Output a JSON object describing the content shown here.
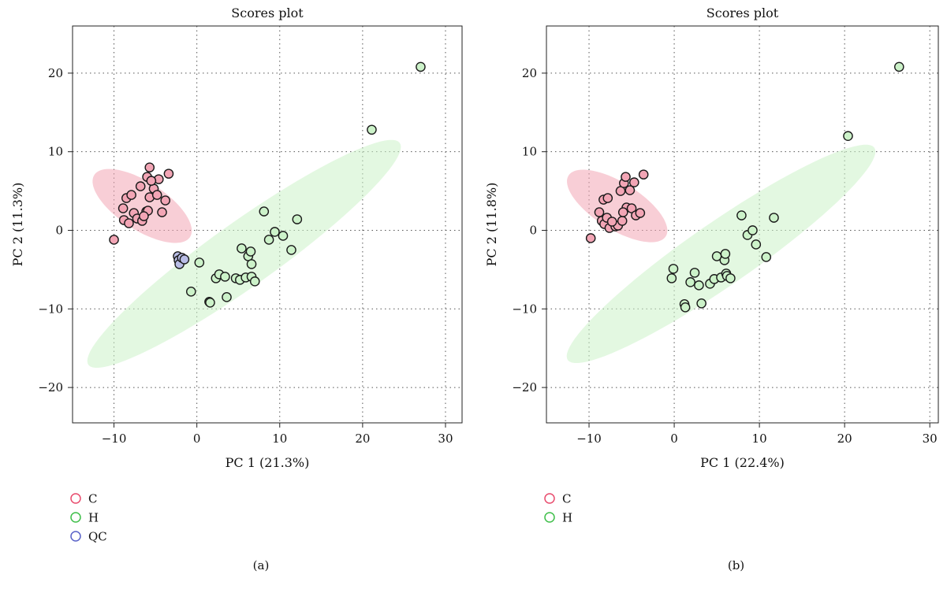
{
  "chart_data": [
    {
      "type": "scatter",
      "title": "Scores plot",
      "xlabel": "PC 1 (21.3%)",
      "ylabel": "PC 2 (11.3%)",
      "xlim": [
        -15,
        32
      ],
      "ylim": [
        -24.5,
        26
      ],
      "xticks": [
        -10,
        0,
        10,
        20,
        30
      ],
      "yticks": [
        -20,
        -10,
        0,
        10,
        20
      ],
      "xtick_labels": [
        "−10",
        "0",
        "10",
        "20",
        "30"
      ],
      "ytick_labels": [
        "−20",
        "−10",
        "0",
        "10",
        "20"
      ],
      "grid": true,
      "legend_position": "bottom-left",
      "caption": "(a)",
      "series": [
        {
          "name": "C",
          "marker_color": "#e84a6c",
          "fill_color": "#f2a5b5",
          "points": [
            [
              -10,
              -1.2
            ],
            [
              -8.8,
              1.3
            ],
            [
              -8.5,
              4.1
            ],
            [
              -8.9,
              2.8
            ],
            [
              -8.2,
              0.9
            ],
            [
              -7.6,
              2.2
            ],
            [
              -7.2,
              1.5
            ],
            [
              -6.6,
              1.2
            ],
            [
              -6.1,
              2.4
            ],
            [
              -6.0,
              6.8
            ],
            [
              -5.7,
              8.0
            ],
            [
              -5.7,
              4.2
            ],
            [
              -5.2,
              5.3
            ],
            [
              -4.8,
              4.5
            ],
            [
              -4.6,
              6.5
            ],
            [
              -4.2,
              2.3
            ],
            [
              -3.8,
              3.8
            ],
            [
              -3.4,
              7.2
            ],
            [
              -7.9,
              4.5
            ],
            [
              -6.8,
              5.6
            ],
            [
              -5.9,
              2.5
            ],
            [
              -5.5,
              6.3
            ],
            [
              -6.4,
              1.8
            ]
          ],
          "ellipse": {
            "center": [
              -6.6,
              3.1
            ],
            "semi_axes": [
              3.0,
              7.0
            ],
            "angle_deg": 55
          }
        },
        {
          "name": "H",
          "marker_color": "#3fbf4a",
          "fill_color": "#ccf2c9",
          "points": [
            [
              0.3,
              -4.1
            ],
            [
              -0.7,
              -7.8
            ],
            [
              1.5,
              -9.1
            ],
            [
              1.6,
              -9.2
            ],
            [
              2.3,
              -6.1
            ],
            [
              2.7,
              -5.6
            ],
            [
              3.4,
              -5.9
            ],
            [
              3.6,
              -8.5
            ],
            [
              4.7,
              -6.1
            ],
            [
              5.2,
              -6.3
            ],
            [
              5.4,
              -2.3
            ],
            [
              5.9,
              -6.0
            ],
            [
              6.2,
              -3.3
            ],
            [
              6.5,
              -2.7
            ],
            [
              6.6,
              -4.3
            ],
            [
              6.6,
              -5.9
            ],
            [
              7.0,
              -6.5
            ],
            [
              8.1,
              2.4
            ],
            [
              8.7,
              -1.2
            ],
            [
              9.4,
              -0.2
            ],
            [
              10.4,
              -0.7
            ],
            [
              11.4,
              -2.5
            ],
            [
              12.1,
              1.4
            ],
            [
              21.1,
              12.8
            ],
            [
              27.0,
              20.8
            ]
          ],
          "ellipse": {
            "center": [
              5.7,
              -3.0
            ],
            "semi_axes": [
              23.5,
              4.0
            ],
            "angle_deg": 37
          }
        },
        {
          "name": "QC",
          "marker_color": "#5962c8",
          "fill_color": "#b9bde6",
          "points": [
            [
              -2.3,
              -3.3
            ],
            [
              -2.2,
              -3.8
            ],
            [
              -2.1,
              -4.3
            ],
            [
              -1.8,
              -3.5
            ],
            [
              -1.5,
              -3.7
            ]
          ]
        }
      ]
    },
    {
      "type": "scatter",
      "title": "Scores plot",
      "xlabel": "PC 1 (22.4%)",
      "ylabel": "PC 2 (11.8%)",
      "xlim": [
        -15,
        31
      ],
      "ylim": [
        -24.5,
        26
      ],
      "xticks": [
        -10,
        0,
        10,
        20,
        30
      ],
      "yticks": [
        -20,
        -10,
        0,
        10,
        20
      ],
      "xtick_labels": [
        "−10",
        "0",
        "10",
        "20",
        "30"
      ],
      "ytick_labels": [
        "−20",
        "−10",
        "0",
        "10",
        "20"
      ],
      "grid": true,
      "legend_position": "bottom-left",
      "caption": "(b)",
      "series": [
        {
          "name": "C",
          "marker_color": "#e84a6c",
          "fill_color": "#f2a5b5",
          "points": [
            [
              -9.8,
              -1.0
            ],
            [
              -8.8,
              2.3
            ],
            [
              -8.5,
              1.2
            ],
            [
              -8.2,
              0.8
            ],
            [
              -7.9,
              1.6
            ],
            [
              -7.6,
              0.3
            ],
            [
              -6.9,
              0.5
            ],
            [
              -6.6,
              0.6
            ],
            [
              -6.3,
              5.0
            ],
            [
              -6.1,
              1.2
            ],
            [
              -5.9,
              6.0
            ],
            [
              -5.7,
              6.8
            ],
            [
              -5.6,
              2.9
            ],
            [
              -5.2,
              5.1
            ],
            [
              -5.0,
              2.8
            ],
            [
              -4.7,
              6.1
            ],
            [
              -4.5,
              1.9
            ],
            [
              -4.0,
              2.2
            ],
            [
              -3.6,
              7.1
            ],
            [
              -8.3,
              3.9
            ],
            [
              -7.8,
              4.1
            ],
            [
              -6.0,
              2.3
            ],
            [
              -7.3,
              1.1
            ]
          ],
          "ellipse": {
            "center": [
              -6.7,
              3.1
            ],
            "semi_axes": [
              2.9,
              6.9
            ],
            "angle_deg": 55
          }
        },
        {
          "name": "H",
          "marker_color": "#3fbf4a",
          "fill_color": "#ccf2c9",
          "points": [
            [
              -0.3,
              -6.1
            ],
            [
              -0.1,
              -4.9
            ],
            [
              1.2,
              -9.4
            ],
            [
              1.3,
              -9.8
            ],
            [
              1.9,
              -6.6
            ],
            [
              2.4,
              -5.4
            ],
            [
              2.9,
              -7.0
            ],
            [
              3.2,
              -9.3
            ],
            [
              4.2,
              -6.8
            ],
            [
              4.7,
              -6.2
            ],
            [
              5.0,
              -3.3
            ],
            [
              5.5,
              -6.0
            ],
            [
              5.9,
              -3.8
            ],
            [
              6.0,
              -3.0
            ],
            [
              6.1,
              -5.5
            ],
            [
              6.2,
              -5.8
            ],
            [
              6.6,
              -6.1
            ],
            [
              7.9,
              1.9
            ],
            [
              8.6,
              -0.6
            ],
            [
              9.2,
              0.0
            ],
            [
              9.6,
              -1.8
            ],
            [
              10.8,
              -3.4
            ],
            [
              11.7,
              1.6
            ],
            [
              20.4,
              12.0
            ],
            [
              26.4,
              20.8
            ]
          ],
          "ellipse": {
            "center": [
              5.5,
              -3.0
            ],
            "semi_axes": [
              22.5,
              3.9
            ],
            "angle_deg": 37
          }
        }
      ]
    }
  ]
}
